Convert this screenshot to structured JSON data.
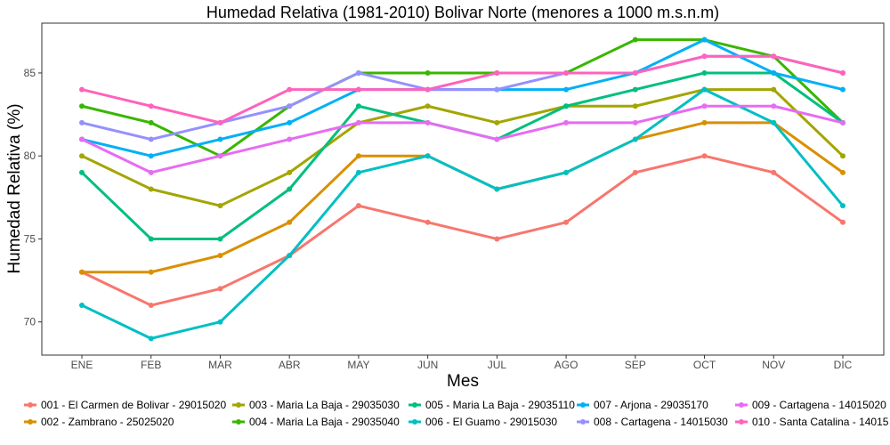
{
  "chart_data": {
    "type": "line",
    "title": "Humedad Relativa (1981-2010) Bolivar Norte (menores a 1000 m.s.n.m)",
    "xlabel": "Mes",
    "ylabel": "Humedad Relativa (%)",
    "ylim": [
      68,
      88
    ],
    "yticks": [
      70,
      75,
      80,
      85
    ],
    "grid": false,
    "legend_position": "bottom",
    "categories": [
      "ENE",
      "FEB",
      "MAR",
      "ABR",
      "MAY",
      "JUN",
      "JUL",
      "AGO",
      "SEP",
      "OCT",
      "NOV",
      "DIC"
    ],
    "series": [
      {
        "name": "001 - El Carmen de Bolivar - 29015020",
        "color": "#F8766D",
        "values": [
          73,
          71,
          72,
          74,
          77,
          76,
          75,
          76,
          79,
          80,
          79,
          76
        ]
      },
      {
        "name": "002 - Zambrano - 25025020",
        "color": "#D89000",
        "values": [
          73,
          73,
          74,
          76,
          80,
          80,
          78,
          79,
          81,
          82,
          82,
          79
        ]
      },
      {
        "name": "003 - Maria La Baja - 29035030",
        "color": "#A3A500",
        "values": [
          80,
          78,
          77,
          79,
          82,
          83,
          82,
          83,
          83,
          84,
          84,
          80
        ]
      },
      {
        "name": "004 - Maria La Baja - 29035040",
        "color": "#39B600",
        "values": [
          83,
          82,
          80,
          83,
          85,
          85,
          85,
          85,
          87,
          87,
          86,
          82
        ]
      },
      {
        "name": "005 - Maria La Baja - 29035110",
        "color": "#00BF7D",
        "values": [
          79,
          75,
          75,
          78,
          83,
          82,
          81,
          83,
          84,
          85,
          85,
          82
        ]
      },
      {
        "name": "006 - El Guamo - 29015030",
        "color": "#00BFC4",
        "values": [
          71,
          69,
          70,
          74,
          79,
          80,
          78,
          79,
          81,
          84,
          82,
          77
        ]
      },
      {
        "name": "007 - Arjona - 29035170",
        "color": "#00B0F6",
        "values": [
          81,
          80,
          81,
          82,
          84,
          84,
          84,
          84,
          85,
          87,
          85,
          84
        ]
      },
      {
        "name": "008 - Cartagena - 14015030",
        "color": "#9590FF",
        "values": [
          82,
          81,
          82,
          83,
          85,
          84,
          84,
          85,
          85,
          86,
          86,
          85
        ]
      },
      {
        "name": "009 - Cartagena - 14015020",
        "color": "#E76BF3",
        "values": [
          81,
          79,
          80,
          81,
          82,
          82,
          81,
          82,
          82,
          83,
          83,
          82
        ]
      },
      {
        "name": "010 - Santa Catalina - 14015",
        "color": "#FF62BC",
        "values": [
          84,
          83,
          82,
          84,
          84,
          84,
          85,
          85,
          85,
          86,
          86,
          85
        ]
      }
    ]
  }
}
